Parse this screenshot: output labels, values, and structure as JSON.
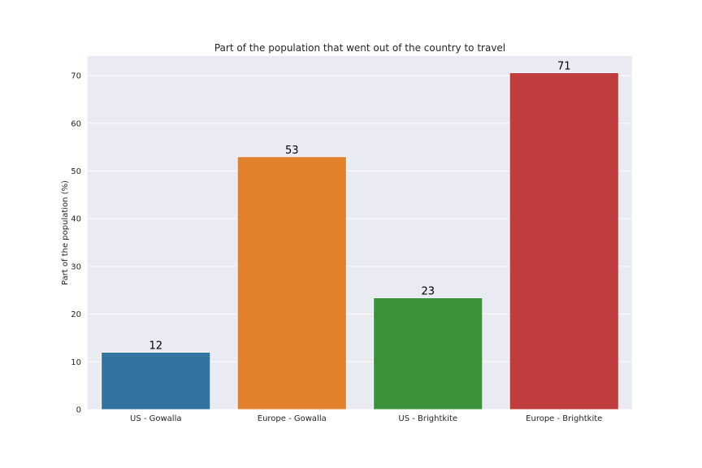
{
  "chart_data": {
    "type": "bar",
    "title": "Part of the population that went out of the country to travel",
    "xlabel": "",
    "ylabel": "Part of the population (%)",
    "categories": [
      "US - Gowalla",
      "Europe - Gowalla",
      "US - Brightkite",
      "Europe - Brightkite"
    ],
    "values": [
      12.0,
      53.0,
      23.4,
      70.6
    ],
    "data_labels": [
      "12",
      "53",
      "23",
      "71"
    ],
    "colors": [
      "#3274a1",
      "#e1812c",
      "#3a923a",
      "#c03d3e"
    ],
    "yticks": [
      0,
      10,
      20,
      30,
      40,
      50,
      60,
      70
    ],
    "ylim": [
      0,
      74.1
    ],
    "grid": true,
    "legend": "none",
    "style": {
      "background": "#eaeaf2",
      "grid_color": "#ffffff"
    }
  }
}
